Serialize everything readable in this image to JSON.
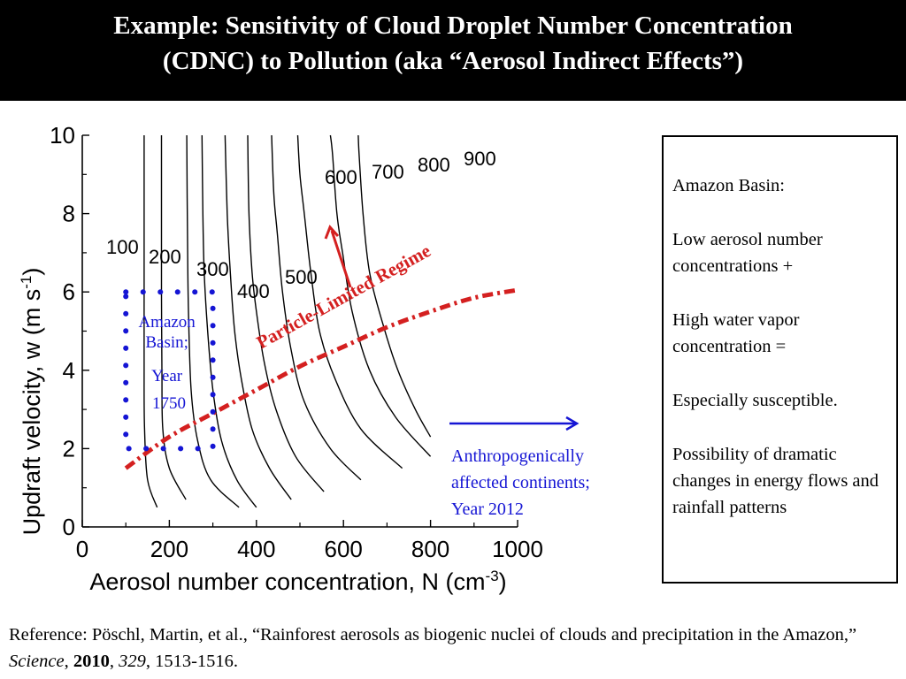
{
  "header": {
    "title_line1": "Example: Sensitivity of Cloud Droplet Number Concentration",
    "title_line2": "(CDNC) to Pollution (aka “Aerosol Indirect Effects”)"
  },
  "chart_data": {
    "type": "line",
    "xlabel": "Aerosol number concentration, N (cm",
    "xlabel_sup": "-3",
    "xlabel_tail": ")",
    "ylabel": "Updraft velocity, w (m s",
    "ylabel_sup": "-1",
    "ylabel_tail": ")",
    "xlim": [
      0,
      1000
    ],
    "ylim": [
      0,
      10
    ],
    "xticks": [
      0,
      200,
      400,
      600,
      800,
      1000
    ],
    "yticks": [
      0,
      2,
      4,
      6,
      8,
      10
    ],
    "grid": false,
    "contour_label_text": [
      "100",
      "200",
      "300",
      "400",
      "500",
      "600",
      "700",
      "800",
      "900"
    ],
    "contours": [
      {
        "cdnc": 100,
        "label": "100",
        "points": [
          [
            172,
            0.5
          ],
          [
            150,
            1.2
          ],
          [
            143,
            2.5
          ],
          [
            142,
            4
          ],
          [
            142,
            6
          ],
          [
            142,
            8
          ],
          [
            142,
            10
          ]
        ]
      },
      {
        "cdnc": 200,
        "label": "200",
        "points": [
          [
            238,
            0.7
          ],
          [
            200,
            1.5
          ],
          [
            185,
            2.5
          ],
          [
            183,
            4
          ],
          [
            182,
            6
          ],
          [
            182,
            8
          ],
          [
            182,
            10
          ]
        ]
      },
      {
        "cdnc": 300,
        "label": "300",
        "points": [
          [
            360,
            0.5
          ],
          [
            295,
            1.2
          ],
          [
            265,
            2.2
          ],
          [
            250,
            3.5
          ],
          [
            244,
            5.5
          ],
          [
            242,
            7
          ],
          [
            240,
            10
          ]
        ]
      },
      {
        "cdnc": 400,
        "label": "400",
        "points": [
          [
            400,
            0.5
          ],
          [
            355,
            1.2
          ],
          [
            320,
            2.2
          ],
          [
            300,
            3.5
          ],
          [
            288,
            5
          ],
          [
            280,
            6.5
          ],
          [
            277,
            8
          ],
          [
            275,
            10
          ]
        ]
      },
      {
        "cdnc": 500,
        "label": "500",
        "points": [
          [
            480,
            0.7
          ],
          [
            430,
            1.5
          ],
          [
            390,
            2.5
          ],
          [
            365,
            3.8
          ],
          [
            350,
            5
          ],
          [
            340,
            6.5
          ],
          [
            333,
            8
          ],
          [
            328,
            10
          ]
        ]
      },
      {
        "cdnc": 600,
        "label": "600",
        "points": [
          [
            555,
            0.9
          ],
          [
            490,
            1.8
          ],
          [
            445,
            3
          ],
          [
            418,
            4.2
          ],
          [
            400,
            5.5
          ],
          [
            390,
            6.5
          ],
          [
            383,
            8
          ],
          [
            380,
            10
          ]
        ]
      },
      {
        "cdnc": 700,
        "label": "700",
        "points": [
          [
            640,
            1.2
          ],
          [
            570,
            2
          ],
          [
            510,
            3.2
          ],
          [
            480,
            4.5
          ],
          [
            460,
            6
          ],
          [
            448,
            7.5
          ],
          [
            440,
            8.5
          ],
          [
            435,
            10
          ]
        ]
      },
      {
        "cdnc": 800,
        "label": "800",
        "points": [
          [
            735,
            1.5
          ],
          [
            640,
            2.5
          ],
          [
            580,
            3.8
          ],
          [
            545,
            5
          ],
          [
            525,
            6.5
          ],
          [
            510,
            8
          ],
          [
            500,
            9
          ],
          [
            495,
            10
          ]
        ]
      },
      {
        "cdnc": 900,
        "label": "900",
        "points": [
          [
            800,
            1.8
          ],
          [
            720,
            2.8
          ],
          [
            660,
            4
          ],
          [
            620,
            5.5
          ],
          [
            598,
            7
          ],
          [
            585,
            8
          ],
          [
            575,
            9.5
          ],
          [
            570,
            10
          ]
        ]
      },
      {
        "cdnc": 1000,
        "label": "",
        "points": [
          [
            800,
            2.3
          ],
          [
            765,
            3
          ],
          [
            725,
            4
          ],
          [
            690,
            5.2
          ],
          [
            660,
            6.5
          ],
          [
            645,
            8
          ],
          [
            636,
            9.5
          ],
          [
            634,
            10
          ]
        ]
      }
    ],
    "regime_line": {
      "label": "Particle-Limited Regime",
      "points": [
        [
          100,
          1.5
        ],
        [
          200,
          2.3
        ],
        [
          300,
          2.9
        ],
        [
          400,
          3.5
        ],
        [
          500,
          4.1
        ],
        [
          600,
          4.6
        ],
        [
          700,
          5.1
        ],
        [
          800,
          5.5
        ],
        [
          900,
          5.85
        ],
        [
          1000,
          6.05
        ]
      ]
    },
    "amazon_box": {
      "x": [
        100,
        300
      ],
      "y": [
        2,
        6
      ],
      "label": [
        "Amazon",
        "Basin;",
        "Year",
        "1750"
      ]
    },
    "continents_annotation": {
      "label": [
        "Anthropogenically",
        "affected continents;",
        "Year 2012"
      ]
    },
    "colors": {
      "contours": "#000000",
      "regime_line": "#d42020",
      "regime_label": "#d42020",
      "red_arrow": "#d42020",
      "amazon_box": "#1515d4",
      "amazon_label": "#1515d4",
      "blue_arrow": "#1515d4",
      "continents_label": "#1515d4"
    }
  },
  "sidebox": {
    "title": "Amazon Basin:",
    "p1": "Low aerosol number concentrations +",
    "p2": "High water vapor concentration =",
    "p3": "Especially susceptible.",
    "p4": "Possibility of dramatic changes in energy flows and rainfall patterns"
  },
  "reference": {
    "prefix": "Reference: Pöschl, Martin, et al., “Rainforest aerosols as biogenic nuclei of clouds and precipitation in the Amazon,”",
    "journal": "Science",
    "year": "2010",
    "volume": "329",
    "pages": "1513-1516."
  }
}
